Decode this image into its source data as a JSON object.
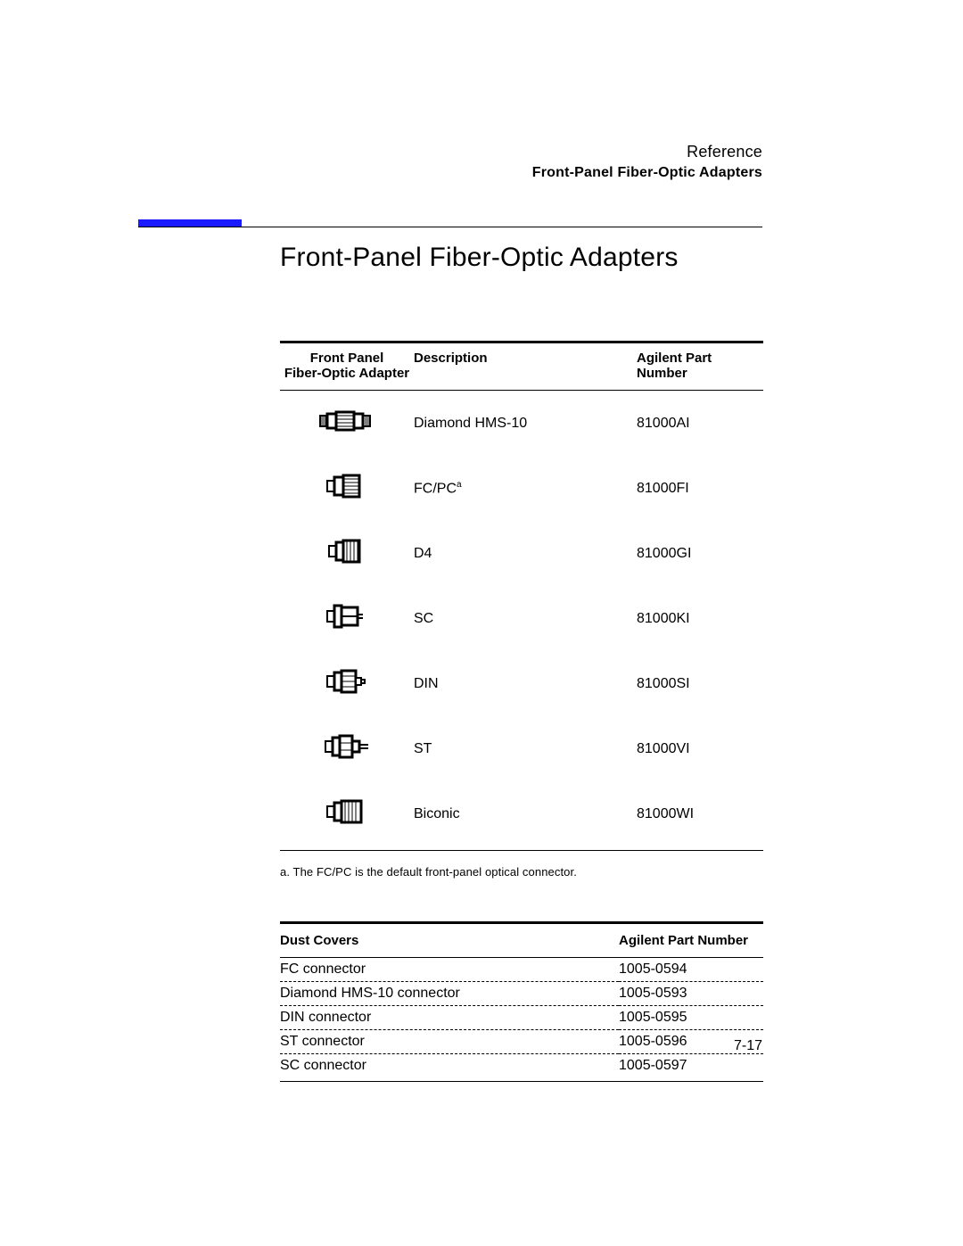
{
  "header": {
    "reference": "Reference",
    "subtitle": "Front-Panel Fiber-Optic Adapters"
  },
  "title": "Front-Panel Fiber-Optic Adapters",
  "adapters_table": {
    "columns": {
      "adapter_l1": "Front Panel",
      "adapter_l2": "Fiber-Optic Adapter",
      "description": "Description",
      "part": "Agilent Part Number"
    },
    "rows": [
      {
        "icon": "hms10",
        "description": "Diamond HMS-10",
        "footnote": "",
        "part": "81000AI"
      },
      {
        "icon": "fcpc",
        "description": "FC/PC",
        "footnote": "a",
        "part": "81000FI"
      },
      {
        "icon": "d4",
        "description": "D4",
        "footnote": "",
        "part": "81000GI"
      },
      {
        "icon": "sc",
        "description": "SC",
        "footnote": "",
        "part": "81000KI"
      },
      {
        "icon": "din",
        "description": "DIN",
        "footnote": "",
        "part": "81000SI"
      },
      {
        "icon": "st",
        "description": "ST",
        "footnote": "",
        "part": "81000VI"
      },
      {
        "icon": "biconic",
        "description": "Biconic",
        "footnote": "",
        "part": "81000WI"
      }
    ],
    "footnote_label": "a.",
    "footnote_text": "The FC/PC is the default front-panel optical connector."
  },
  "dust_table": {
    "columns": {
      "item": "Dust Covers",
      "part": "Agilent Part Number"
    },
    "rows": [
      {
        "item": "FC connector",
        "part": "1005-0594"
      },
      {
        "item": "Diamond HMS-10 connector",
        "part": "1005-0593"
      },
      {
        "item": "DIN connector",
        "part": "1005-0595"
      },
      {
        "item": "ST connector",
        "part": "1005-0596"
      },
      {
        "item": "SC connector",
        "part": "1005-0597"
      }
    ]
  },
  "page_number": "7-17",
  "style": {
    "accent_color": "#1a1aff",
    "text_color": "#000000",
    "background": "#ffffff",
    "title_fontsize": 30,
    "body_fontsize": 16,
    "header_fontsize_bold": 15,
    "footnote_fontsize": 13
  }
}
